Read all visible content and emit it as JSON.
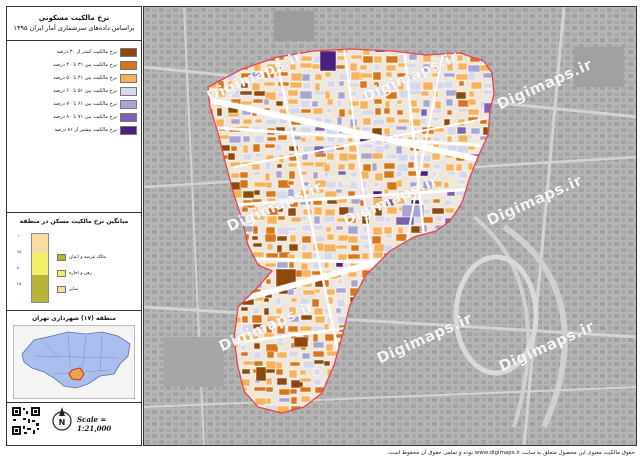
{
  "legend": {
    "title_line1": "نرخ مالکیت مسکونی",
    "title_line2": "براساس داده‌های سرشماری آمار ایران ۱۳۹۵",
    "classes": [
      {
        "label": "نرخ مالکیت کمتر از ۳۰ درصد",
        "color": "#8c4a0e"
      },
      {
        "label": "نرخ مالکیت بین ۳۱ تا ۴۰ درصد",
        "color": "#d8761c"
      },
      {
        "label": "نرخ مالکیت بین ۴۱ تا ۵۰ درصد",
        "color": "#f6b25c"
      },
      {
        "label": "نرخ مالکیت بین ۵۱ تا ۶۰ درصد",
        "color": "#d7d8ec"
      },
      {
        "label": "نرخ مالکیت بین ۶۱ تا ۷۰ درصد",
        "color": "#a9a5d2"
      },
      {
        "label": "نرخ مالکیت بین ۷۱ تا ۸۰ درصد",
        "color": "#7a64b0"
      },
      {
        "label": "نرخ مالکیت بیشتر از ۸۱ درصد",
        "color": "#4b1f7e"
      }
    ]
  },
  "bar_chart": {
    "title": "میانگین نرخ مالکیت مسکن در منطقه",
    "ticks": [
      "۱۰۰",
      "۷۵",
      "۵۰",
      "۲۵",
      "۰"
    ],
    "segments": [
      {
        "label": "مالک عرصه و اعیان",
        "color": "#b8b43a",
        "share": 0.4
      },
      {
        "label": "رهن و اجاره",
        "color": "#f4ef6a",
        "share": 0.32
      },
      {
        "label": "سایر",
        "color": "#f8dca0",
        "share": 0.28
      }
    ]
  },
  "locator": {
    "title": "منطقه (۱۷) شهرداری تهران"
  },
  "scale_text": "Scale = 1:21,000",
  "north_label": "N",
  "watermark": "Digimaps.ir",
  "footer": "حقوق مالکیت معنوی این محصول متعلق به سایت www.digimaps.ir بوده و تمامی حقوق آن محفوظ است.",
  "colors": {
    "boundary": "#e8434a",
    "road": "#ffffff",
    "background": "#bcbcbc",
    "locator_fill": "#a9c0ee",
    "locator_highlight": "#f4a24a"
  }
}
